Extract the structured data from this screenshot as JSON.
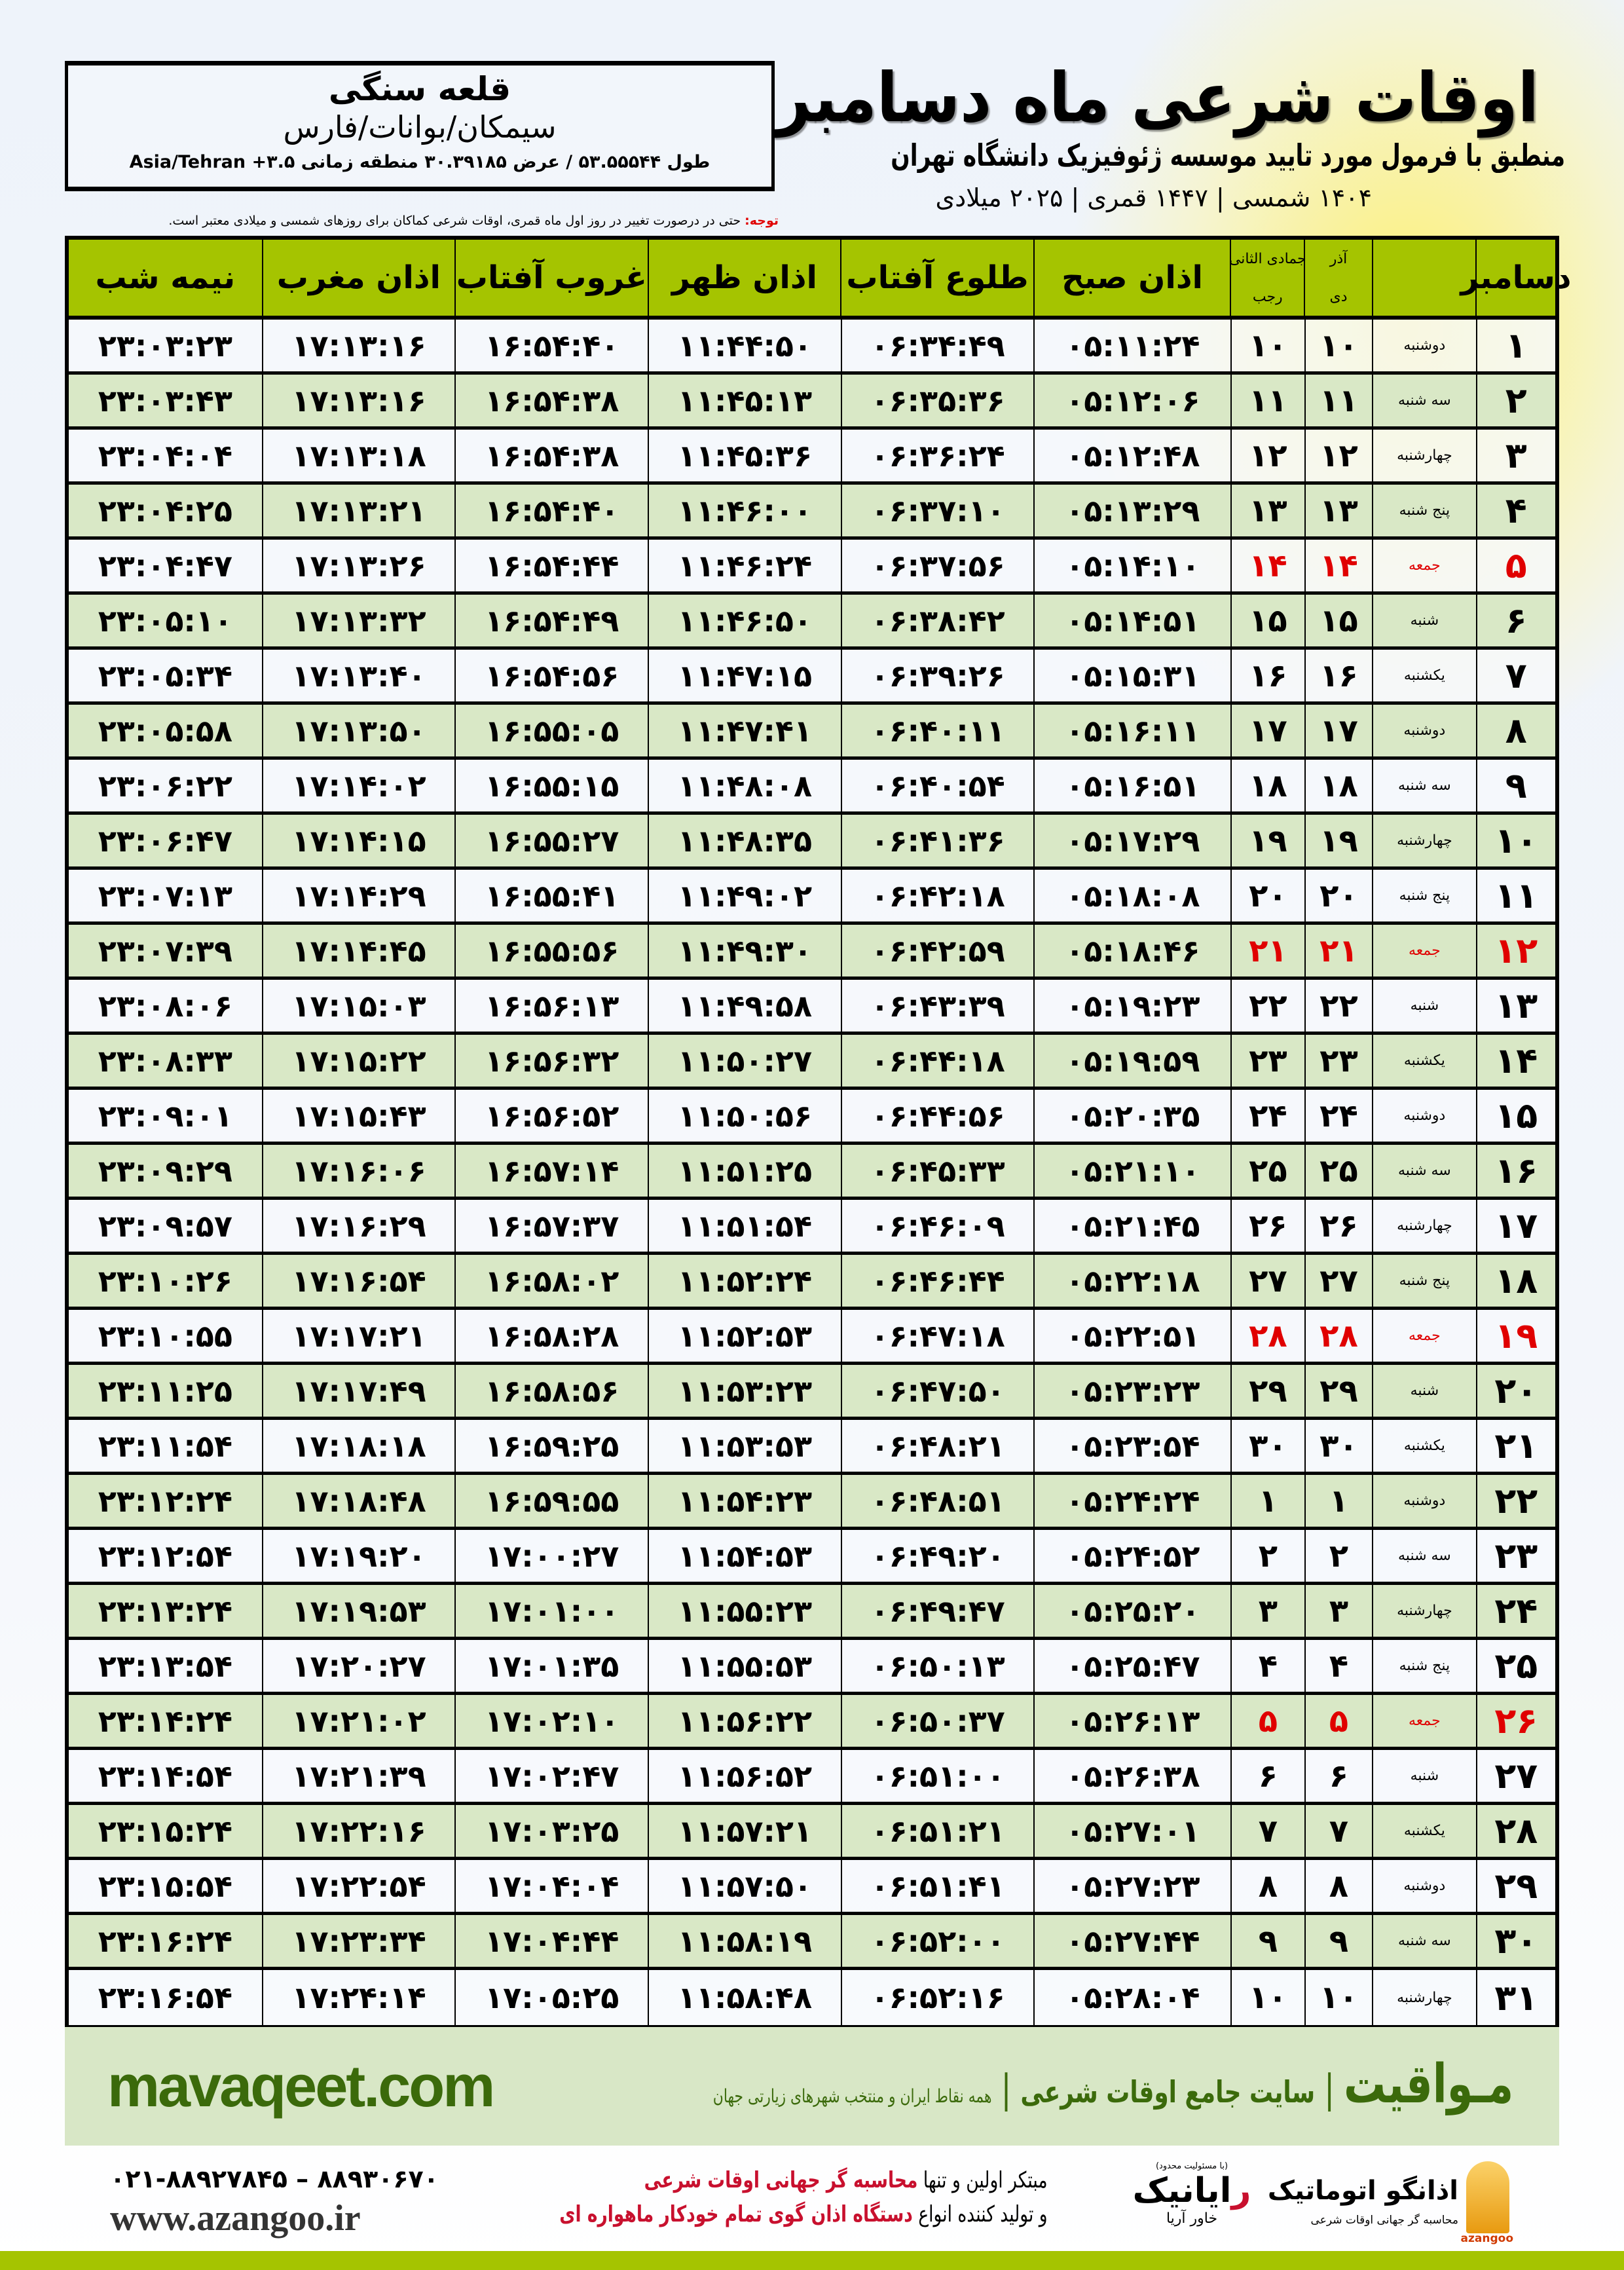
{
  "location": {
    "name": "قلعه سنگی",
    "path": "سیمکان/بوانات/فارس",
    "coords": "طول ۵۳.۵۵۵۴۴ / عرض ۳۰.۳۹۱۸۵ منطقه زمانی ۳.۵+ Asia/Tehran"
  },
  "header": {
    "title": "اوقات شرعی ماه دسامبر",
    "subtitle": "منطبق با فرمول مورد تایید موسسه ژئوفیزیک دانشگاه تهران",
    "years": "۱۴۰۴ شمسی | ۱۴۴۷ قمری | ۲۰۲۵ میلادی"
  },
  "note": {
    "label": "توجه:",
    "text": " حتی در درصورت تغییر در روز اول ماه قمری، اوقات شرعی کماکان برای روزهای شمسی و میلادی معتبر است."
  },
  "table": {
    "columns": {
      "month": "دسامبر",
      "solar_top": "آذر",
      "solar_bottom": "دی",
      "lunar_top": "جمادی الثانی",
      "lunar_bottom": "رجب",
      "fajr": "اذان صبح",
      "sunrise": "طلوع آفتاب",
      "dhuhr": "اذان ظهر",
      "sunset": "غروب آفتاب",
      "maghrib": "اذان مغرب",
      "midnight": "نیمه شب"
    },
    "friday_color": "#e00000",
    "header_color": "#a5c400",
    "rows": [
      [
        "۱",
        "دوشنبه",
        "۱۰",
        "۱۰",
        "۰۵:۱۱:۲۴",
        "۰۶:۳۴:۴۹",
        "۱۱:۴۴:۵۰",
        "۱۶:۵۴:۴۰",
        "۱۷:۱۳:۱۶",
        "۲۳:۰۳:۲۳"
      ],
      [
        "۲",
        "سه شنبه",
        "۱۱",
        "۱۱",
        "۰۵:۱۲:۰۶",
        "۰۶:۳۵:۳۶",
        "۱۱:۴۵:۱۳",
        "۱۶:۵۴:۳۸",
        "۱۷:۱۳:۱۶",
        "۲۳:۰۳:۴۳"
      ],
      [
        "۳",
        "چهارشنبه",
        "۱۲",
        "۱۲",
        "۰۵:۱۲:۴۸",
        "۰۶:۳۶:۲۴",
        "۱۱:۴۵:۳۶",
        "۱۶:۵۴:۳۸",
        "۱۷:۱۳:۱۸",
        "۲۳:۰۴:۰۴"
      ],
      [
        "۴",
        "پنج شنبه",
        "۱۳",
        "۱۳",
        "۰۵:۱۳:۲۹",
        "۰۶:۳۷:۱۰",
        "۱۱:۴۶:۰۰",
        "۱۶:۵۴:۴۰",
        "۱۷:۱۳:۲۱",
        "۲۳:۰۴:۲۵"
      ],
      [
        "۵",
        "جمعه",
        "۱۴",
        "۱۴",
        "۰۵:۱۴:۱۰",
        "۰۶:۳۷:۵۶",
        "۱۱:۴۶:۲۴",
        "۱۶:۵۴:۴۴",
        "۱۷:۱۳:۲۶",
        "۲۳:۰۴:۴۷"
      ],
      [
        "۶",
        "شنبه",
        "۱۵",
        "۱۵",
        "۰۵:۱۴:۵۱",
        "۰۶:۳۸:۴۲",
        "۱۱:۴۶:۵۰",
        "۱۶:۵۴:۴۹",
        "۱۷:۱۳:۳۲",
        "۲۳:۰۵:۱۰"
      ],
      [
        "۷",
        "یکشنبه",
        "۱۶",
        "۱۶",
        "۰۵:۱۵:۳۱",
        "۰۶:۳۹:۲۶",
        "۱۱:۴۷:۱۵",
        "۱۶:۵۴:۵۶",
        "۱۷:۱۳:۴۰",
        "۲۳:۰۵:۳۴"
      ],
      [
        "۸",
        "دوشنبه",
        "۱۷",
        "۱۷",
        "۰۵:۱۶:۱۱",
        "۰۶:۴۰:۱۱",
        "۱۱:۴۷:۴۱",
        "۱۶:۵۵:۰۵",
        "۱۷:۱۳:۵۰",
        "۲۳:۰۵:۵۸"
      ],
      [
        "۹",
        "سه شنبه",
        "۱۸",
        "۱۸",
        "۰۵:۱۶:۵۱",
        "۰۶:۴۰:۵۴",
        "۱۱:۴۸:۰۸",
        "۱۶:۵۵:۱۵",
        "۱۷:۱۴:۰۲",
        "۲۳:۰۶:۲۲"
      ],
      [
        "۱۰",
        "چهارشنبه",
        "۱۹",
        "۱۹",
        "۰۵:۱۷:۲۹",
        "۰۶:۴۱:۳۶",
        "۱۱:۴۸:۳۵",
        "۱۶:۵۵:۲۷",
        "۱۷:۱۴:۱۵",
        "۲۳:۰۶:۴۷"
      ],
      [
        "۱۱",
        "پنج شنبه",
        "۲۰",
        "۲۰",
        "۰۵:۱۸:۰۸",
        "۰۶:۴۲:۱۸",
        "۱۱:۴۹:۰۲",
        "۱۶:۵۵:۴۱",
        "۱۷:۱۴:۲۹",
        "۲۳:۰۷:۱۳"
      ],
      [
        "۱۲",
        "جمعه",
        "۲۱",
        "۲۱",
        "۰۵:۱۸:۴۶",
        "۰۶:۴۲:۵۹",
        "۱۱:۴۹:۳۰",
        "۱۶:۵۵:۵۶",
        "۱۷:۱۴:۴۵",
        "۲۳:۰۷:۳۹"
      ],
      [
        "۱۳",
        "شنبه",
        "۲۲",
        "۲۲",
        "۰۵:۱۹:۲۳",
        "۰۶:۴۳:۳۹",
        "۱۱:۴۹:۵۸",
        "۱۶:۵۶:۱۳",
        "۱۷:۱۵:۰۳",
        "۲۳:۰۸:۰۶"
      ],
      [
        "۱۴",
        "یکشنبه",
        "۲۳",
        "۲۳",
        "۰۵:۱۹:۵۹",
        "۰۶:۴۴:۱۸",
        "۱۱:۵۰:۲۷",
        "۱۶:۵۶:۳۲",
        "۱۷:۱۵:۲۲",
        "۲۳:۰۸:۳۳"
      ],
      [
        "۱۵",
        "دوشنبه",
        "۲۴",
        "۲۴",
        "۰۵:۲۰:۳۵",
        "۰۶:۴۴:۵۶",
        "۱۱:۵۰:۵۶",
        "۱۶:۵۶:۵۲",
        "۱۷:۱۵:۴۳",
        "۲۳:۰۹:۰۱"
      ],
      [
        "۱۶",
        "سه شنبه",
        "۲۵",
        "۲۵",
        "۰۵:۲۱:۱۰",
        "۰۶:۴۵:۳۳",
        "۱۱:۵۱:۲۵",
        "۱۶:۵۷:۱۴",
        "۱۷:۱۶:۰۶",
        "۲۳:۰۹:۲۹"
      ],
      [
        "۱۷",
        "چهارشنبه",
        "۲۶",
        "۲۶",
        "۰۵:۲۱:۴۵",
        "۰۶:۴۶:۰۹",
        "۱۱:۵۱:۵۴",
        "۱۶:۵۷:۳۷",
        "۱۷:۱۶:۲۹",
        "۲۳:۰۹:۵۷"
      ],
      [
        "۱۸",
        "پنج شنبه",
        "۲۷",
        "۲۷",
        "۰۵:۲۲:۱۸",
        "۰۶:۴۶:۴۴",
        "۱۱:۵۲:۲۴",
        "۱۶:۵۸:۰۲",
        "۱۷:۱۶:۵۴",
        "۲۳:۱۰:۲۶"
      ],
      [
        "۱۹",
        "جمعه",
        "۲۸",
        "۲۸",
        "۰۵:۲۲:۵۱",
        "۰۶:۴۷:۱۸",
        "۱۱:۵۲:۵۳",
        "۱۶:۵۸:۲۸",
        "۱۷:۱۷:۲۱",
        "۲۳:۱۰:۵۵"
      ],
      [
        "۲۰",
        "شنبه",
        "۲۹",
        "۲۹",
        "۰۵:۲۳:۲۳",
        "۰۶:۴۷:۵۰",
        "۱۱:۵۳:۲۳",
        "۱۶:۵۸:۵۶",
        "۱۷:۱۷:۴۹",
        "۲۳:۱۱:۲۵"
      ],
      [
        "۲۱",
        "یکشنبه",
        "۳۰",
        "۳۰",
        "۰۵:۲۳:۵۴",
        "۰۶:۴۸:۲۱",
        "۱۱:۵۳:۵۳",
        "۱۶:۵۹:۲۵",
        "۱۷:۱۸:۱۸",
        "۲۳:۱۱:۵۴"
      ],
      [
        "۲۲",
        "دوشنبه",
        "۱",
        "۱",
        "۰۵:۲۴:۲۴",
        "۰۶:۴۸:۵۱",
        "۱۱:۵۴:۲۳",
        "۱۶:۵۹:۵۵",
        "۱۷:۱۸:۴۸",
        "۲۳:۱۲:۲۴"
      ],
      [
        "۲۳",
        "سه شنبه",
        "۲",
        "۲",
        "۰۵:۲۴:۵۲",
        "۰۶:۴۹:۲۰",
        "۱۱:۵۴:۵۳",
        "۱۷:۰۰:۲۷",
        "۱۷:۱۹:۲۰",
        "۲۳:۱۲:۵۴"
      ],
      [
        "۲۴",
        "چهارشنبه",
        "۳",
        "۳",
        "۰۵:۲۵:۲۰",
        "۰۶:۴۹:۴۷",
        "۱۱:۵۵:۲۳",
        "۱۷:۰۱:۰۰",
        "۱۷:۱۹:۵۳",
        "۲۳:۱۳:۲۴"
      ],
      [
        "۲۵",
        "پنج شنبه",
        "۴",
        "۴",
        "۰۵:۲۵:۴۷",
        "۰۶:۵۰:۱۳",
        "۱۱:۵۵:۵۳",
        "۱۷:۰۱:۳۵",
        "۱۷:۲۰:۲۷",
        "۲۳:۱۳:۵۴"
      ],
      [
        "۲۶",
        "جمعه",
        "۵",
        "۵",
        "۰۵:۲۶:۱۳",
        "۰۶:۵۰:۳۷",
        "۱۱:۵۶:۲۲",
        "۱۷:۰۲:۱۰",
        "۱۷:۲۱:۰۲",
        "۲۳:۱۴:۲۴"
      ],
      [
        "۲۷",
        "شنبه",
        "۶",
        "۶",
        "۰۵:۲۶:۳۸",
        "۰۶:۵۱:۰۰",
        "۱۱:۵۶:۵۲",
        "۱۷:۰۲:۴۷",
        "۱۷:۲۱:۳۹",
        "۲۳:۱۴:۵۴"
      ],
      [
        "۲۸",
        "یکشنبه",
        "۷",
        "۷",
        "۰۵:۲۷:۰۱",
        "۰۶:۵۱:۲۱",
        "۱۱:۵۷:۲۱",
        "۱۷:۰۳:۲۵",
        "۱۷:۲۲:۱۶",
        "۲۳:۱۵:۲۴"
      ],
      [
        "۲۹",
        "دوشنبه",
        "۸",
        "۸",
        "۰۵:۲۷:۲۳",
        "۰۶:۵۱:۴۱",
        "۱۱:۵۷:۵۰",
        "۱۷:۰۴:۰۴",
        "۱۷:۲۲:۵۴",
        "۲۳:۱۵:۵۴"
      ],
      [
        "۳۰",
        "سه شنبه",
        "۹",
        "۹",
        "۰۵:۲۷:۴۴",
        "۰۶:۵۲:۰۰",
        "۱۱:۵۸:۱۹",
        "۱۷:۰۴:۴۴",
        "۱۷:۲۳:۳۴",
        "۲۳:۱۶:۲۴"
      ],
      [
        "۳۱",
        "چهارشنبه",
        "۱۰",
        "۱۰",
        "۰۵:۲۸:۰۴",
        "۰۶:۵۲:۱۶",
        "۱۱:۵۸:۴۸",
        "۱۷:۰۵:۲۵",
        "۱۷:۲۴:۱۴",
        "۲۳:۱۶:۵۴"
      ]
    ]
  },
  "banner": {
    "logo": "مـواقیت",
    "separator": "|",
    "tagline": "سایت جامع اوقات شرعی",
    "sub": "همه نقاط ایران و منتخب شهرهای زیارتی جهان",
    "url": "mavaqeet.com",
    "brand_color": "#3b6a0b"
  },
  "footer": {
    "line1_plain": "مبتکر اولین و تنها ",
    "line1_red": "محاسبه گر جهانی اوقات شرعی",
    "line2_plain": "و تولید کننده انواع ",
    "line2_red": "دستگاه اذان گوی تمام خودکار ماهواره ای",
    "phone": "۰۲۱-۸۸۹۲۷۸۴۵ – ۸۸۹۳۰۶۷۰",
    "website": "www.azangoo.ir",
    "rayanik_ltd": "(با مسئولیت محدود)",
    "rayanik_first": "ر",
    "rayanik_rest": "ایانیک",
    "rayanik_sub": "خاور آریا",
    "azangoo_name": "اذانگو اتوماتیک",
    "azangoo_sub": "محاسبه گر جهانی اوقات شرعی",
    "azangoo_latin": "azangoo"
  }
}
